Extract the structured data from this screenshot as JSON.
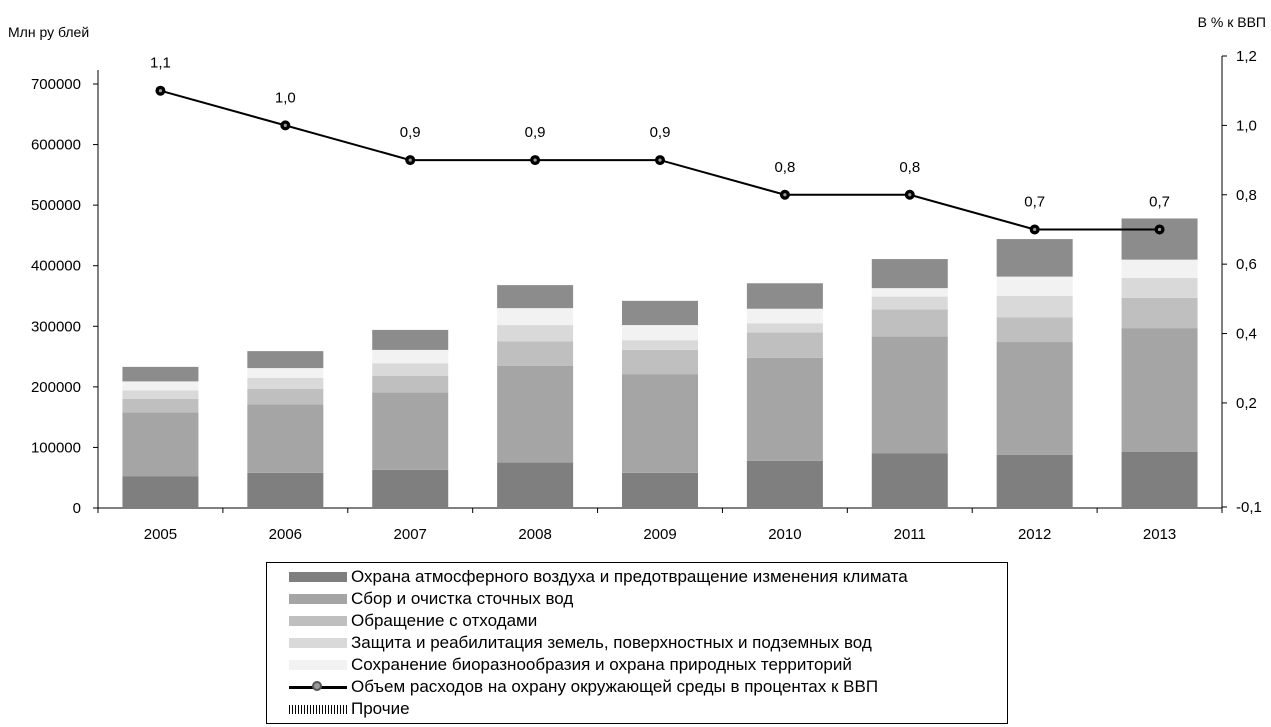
{
  "chart_data": {
    "type": "bar",
    "stacked": true,
    "ylabel": "Млн ру блей",
    "y2label": "В % к ВВП",
    "categories": [
      "2005",
      "2006",
      "2007",
      "2008",
      "2009",
      "2010",
      "2011",
      "2012",
      "2013"
    ],
    "ylim": [
      0,
      700000
    ],
    "yticks": [
      "0",
      "100000",
      "200000",
      "300000",
      "400000",
      "500000",
      "600000",
      "700000"
    ],
    "y2ticks": [
      "-0,1",
      "0,2",
      "0,4",
      "0,6",
      "0,8",
      "1,0",
      "1,2"
    ],
    "series": [
      {
        "name": "Охрана атмосферного воздуха и предотвращение изменения климата",
        "color": "#7f7f7f",
        "values": [
          52000,
          58000,
          63000,
          75000,
          58000,
          78000,
          90000,
          88000,
          93000
        ]
      },
      {
        "name": "Сбор и очистка сточных вод",
        "color": "#a5a5a5",
        "values": [
          106000,
          113000,
          128000,
          160000,
          163000,
          170000,
          193000,
          186000,
          204000
        ]
      },
      {
        "name": "Обращение с отходами",
        "color": "#bfbfbf",
        "values": [
          22000,
          26000,
          27000,
          40000,
          40000,
          42000,
          45000,
          41000,
          50000
        ]
      },
      {
        "name": "Защита и реабилитация земель, поверхностных и подземных  вод",
        "color": "#d9d9d9",
        "values": [
          14000,
          18000,
          21000,
          27000,
          16000,
          15000,
          21000,
          35000,
          33000
        ]
      },
      {
        "name": "Сохранение биоразнообразия и охрана природных территорий",
        "color": "#f2f2f2",
        "values": [
          15000,
          16000,
          22000,
          28000,
          25000,
          24000,
          14000,
          32000,
          30000
        ]
      },
      {
        "name": "Прочие",
        "color": "#8c8c8c",
        "values": [
          24000,
          28000,
          33000,
          38000,
          40000,
          42000,
          48000,
          62000,
          68000
        ]
      }
    ],
    "line_series": {
      "name": "Объем расходов на охрану окружающей среды в процентах к ВВП",
      "values": [
        1.1,
        1.0,
        0.9,
        0.9,
        0.9,
        0.8,
        0.8,
        0.7,
        0.7
      ],
      "labels": [
        "1,1",
        "1,0",
        "0,9",
        "0,9",
        "0,9",
        "0,8",
        "0,8",
        "0,7",
        "0,7"
      ]
    }
  },
  "legend": {
    "items": [
      {
        "label": "Охрана атмосферного воздуха и предотвращение изменения климата",
        "color": "#7f7f7f",
        "kind": "swatch"
      },
      {
        "label": "Сбор и очистка сточных вод",
        "color": "#a5a5a5",
        "kind": "swatch"
      },
      {
        "label": "Обращение с отходами",
        "color": "#bfbfbf",
        "kind": "swatch"
      },
      {
        "label": "Защита и реабилитация земель, поверхностных и подземных  вод",
        "color": "#d9d9d9",
        "kind": "swatch"
      },
      {
        "label": "Сохранение биоразнообразия и охрана природных территорий",
        "color": "#f2f2f2",
        "kind": "swatch"
      },
      {
        "label": "Объем расходов на охрану окружающей среды в процентах к ВВП",
        "color": "#000000",
        "kind": "line"
      },
      {
        "label": "Прочие",
        "color": "#000000",
        "kind": "hatch"
      }
    ]
  }
}
